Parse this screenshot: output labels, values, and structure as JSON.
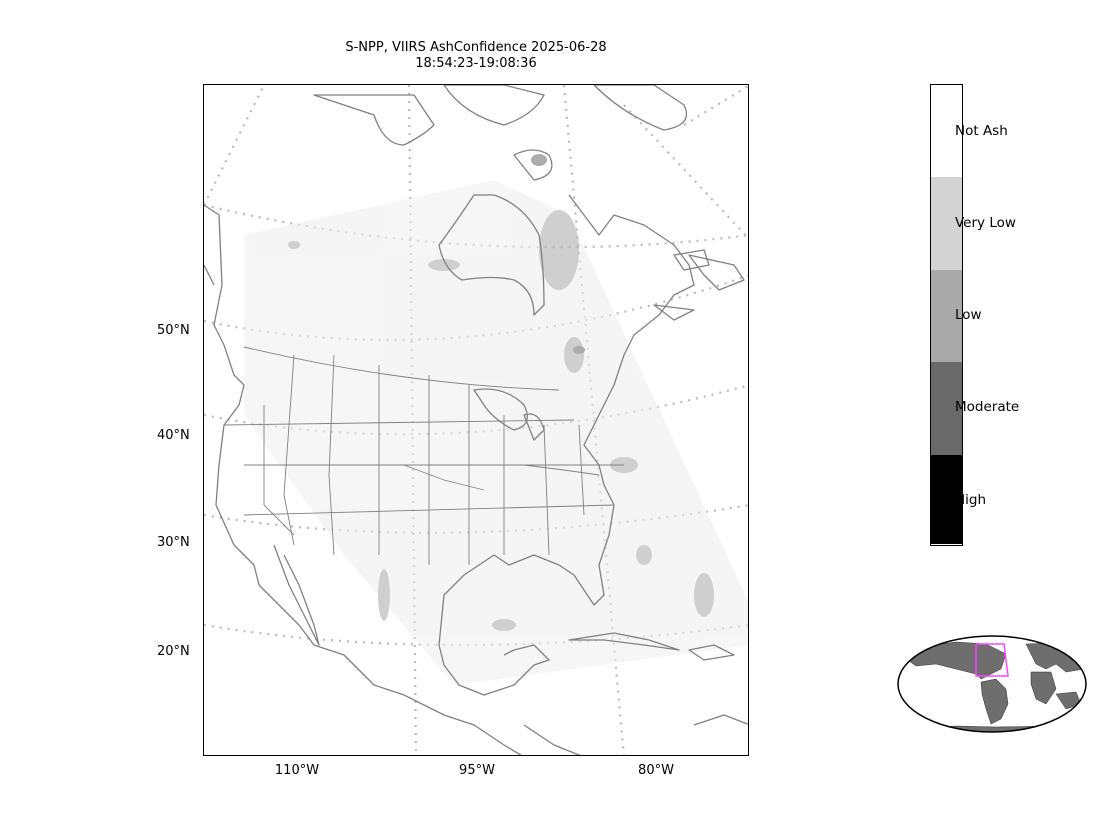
{
  "title": {
    "line1": "S-NPP, VIIRS AshConfidence 2025-06-28",
    "line2": "18:54:23-19:08:36"
  },
  "map": {
    "lat_labels": [
      "50°N",
      "40°N",
      "30°N",
      "20°N"
    ],
    "lon_labels": [
      "110°W",
      "95°W",
      "80°W"
    ],
    "coastline_color": "#808080",
    "graticule_color": "#bbbbbb"
  },
  "colorbar": {
    "categories": [
      {
        "label": "Not Ash",
        "color": "#ffffff"
      },
      {
        "label": "Very Low",
        "color": "#d3d3d3"
      },
      {
        "label": "Low",
        "color": "#a9a9a9"
      },
      {
        "label": "Moderate",
        "color": "#696969"
      },
      {
        "label": "High",
        "color": "#000000"
      }
    ]
  },
  "inset": {
    "land_color": "#6e6e6e",
    "box_color": "#ff44ff"
  }
}
